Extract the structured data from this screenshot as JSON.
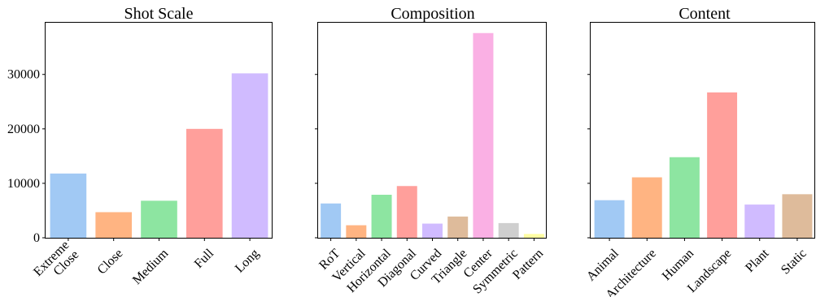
{
  "chart_data": [
    {
      "type": "bar",
      "title": "Shot Scale",
      "categories": [
        "Extreme\nClose",
        "Close",
        "Medium",
        "Full",
        "Long"
      ],
      "values": [
        11800,
        4700,
        6800,
        20000,
        30200
      ],
      "colors": [
        "#a1c9f4",
        "#ffb482",
        "#8de5a1",
        "#ff9f9b",
        "#d0bbff"
      ],
      "ylim": [
        0,
        39500
      ],
      "yticks": [
        0,
        10000,
        20000,
        30000
      ],
      "ytick_labels": [
        "0",
        "10000",
        "20000",
        "30000"
      ],
      "xlabel": "",
      "ylabel": "",
      "grid": false
    },
    {
      "type": "bar",
      "title": "Composition",
      "categories": [
        "RoT",
        "Vertical",
        "Horizontal",
        "Diagonal",
        "Curved",
        "Triangle",
        "Center",
        "Symmetric",
        "Pattern"
      ],
      "values": [
        6300,
        2300,
        7900,
        9500,
        2600,
        3900,
        37600,
        2700,
        700
      ],
      "colors": [
        "#a1c9f4",
        "#ffb482",
        "#8de5a1",
        "#ff9f9b",
        "#d0bbff",
        "#debb9b",
        "#fab0e4",
        "#cfcfcf",
        "#fffea3"
      ],
      "ylim": [
        0,
        39500
      ],
      "xlabel": "",
      "ylabel": "",
      "grid": false
    },
    {
      "type": "bar",
      "title": "Content",
      "categories": [
        "Animal",
        "Architecture",
        "Human",
        "Landscape",
        "Plant",
        "Static"
      ],
      "values": [
        6900,
        11100,
        14800,
        26700,
        6100,
        8000
      ],
      "colors": [
        "#a1c9f4",
        "#ffb482",
        "#8de5a1",
        "#ff9f9b",
        "#d0bbff",
        "#debb9b"
      ],
      "ylim": [
        0,
        39500
      ],
      "xlabel": "",
      "ylabel": "",
      "grid": false
    }
  ]
}
